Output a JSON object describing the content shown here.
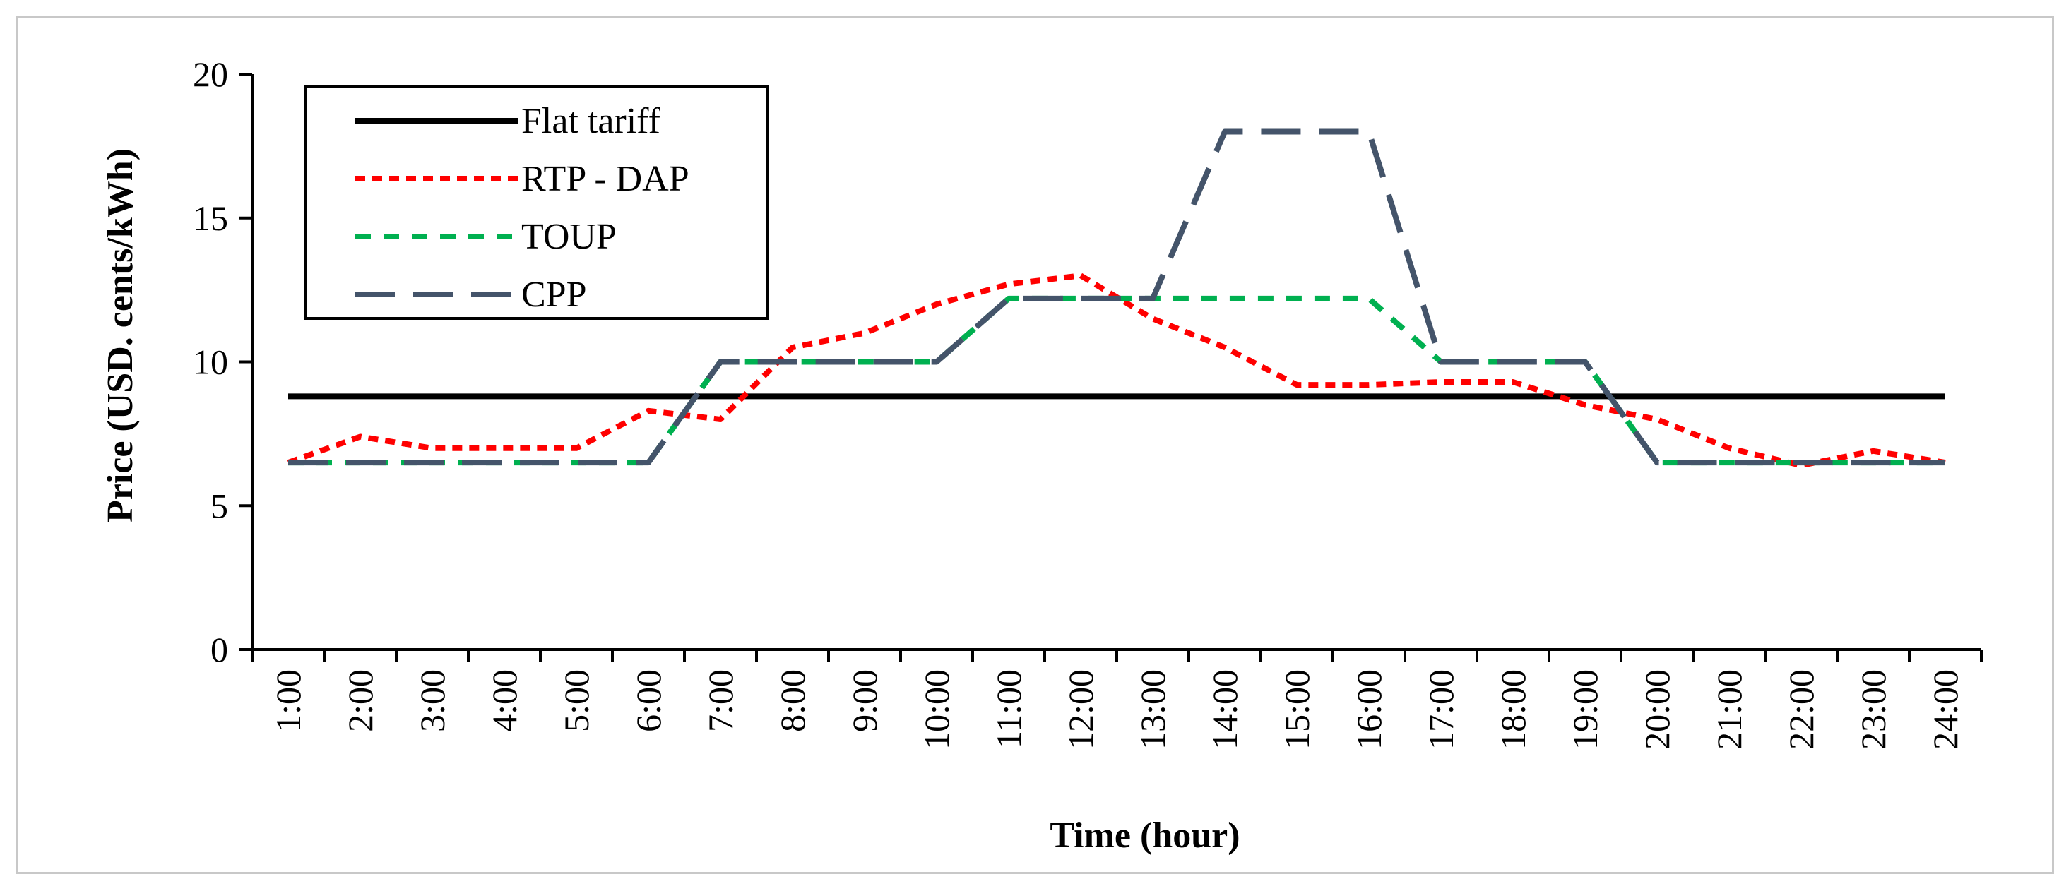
{
  "chart_data": {
    "type": "line",
    "title": "",
    "xlabel": "Time (hour)",
    "ylabel": "Price (USD. cents/kWh)",
    "ylim": [
      0,
      20
    ],
    "yticks": [
      "0",
      "5",
      "10",
      "15",
      "20"
    ],
    "legend_position": "top-left",
    "categories": [
      "1:00",
      "2:00",
      "3:00",
      "4:00",
      "5:00",
      "6:00",
      "7:00",
      "8:00",
      "9:00",
      "10:00",
      "11:00",
      "12:00",
      "13:00",
      "14:00",
      "15:00",
      "16:00",
      "17:00",
      "18:00",
      "19:00",
      "20:00",
      "21:00",
      "22:00",
      "23:00",
      "24:00"
    ],
    "series": [
      {
        "name": "Flat tariff",
        "color": "#000000",
        "dash": "solid",
        "values": [
          8.8,
          8.8,
          8.8,
          8.8,
          8.8,
          8.8,
          8.8,
          8.8,
          8.8,
          8.8,
          8.8,
          8.8,
          8.8,
          8.8,
          8.8,
          8.8,
          8.8,
          8.8,
          8.8,
          8.8,
          8.8,
          8.8,
          8.8,
          8.8
        ]
      },
      {
        "name": "RTP - DAP",
        "color": "#ff0000",
        "dash": "dotted",
        "values": [
          6.5,
          7.4,
          7.0,
          7.0,
          7.0,
          8.3,
          8.0,
          10.5,
          11.0,
          12.0,
          12.7,
          13.0,
          11.5,
          10.5,
          9.2,
          9.2,
          9.3,
          9.3,
          8.5,
          8.0,
          7.0,
          6.4,
          6.9,
          6.5
        ]
      },
      {
        "name": "TOUP",
        "color": "#00b050",
        "dash": "dashed",
        "values": [
          6.5,
          6.5,
          6.5,
          6.5,
          6.5,
          6.5,
          10.0,
          10.0,
          10.0,
          10.0,
          12.2,
          12.2,
          12.2,
          12.2,
          12.2,
          12.2,
          10.0,
          10.0,
          10.0,
          6.5,
          6.5,
          6.5,
          6.5,
          6.5
        ]
      },
      {
        "name": "CPP",
        "color": "#44546a",
        "dash": "longdash",
        "values": [
          6.5,
          6.5,
          6.5,
          6.5,
          6.5,
          6.5,
          10.0,
          10.0,
          10.0,
          10.0,
          12.2,
          12.2,
          12.2,
          18.0,
          18.0,
          18.0,
          10.0,
          10.0,
          10.0,
          6.5,
          6.5,
          6.5,
          6.5,
          6.5
        ]
      }
    ]
  }
}
